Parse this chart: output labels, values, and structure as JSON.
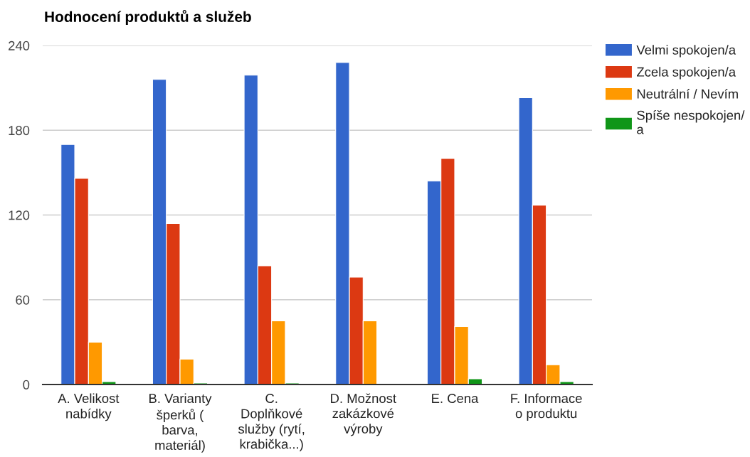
{
  "chart_data": {
    "type": "bar",
    "title": "Hodnocení produktů a služeb",
    "categories": [
      "A. Velikost nabídky",
      "B. Varianty šperků ( barva, materiál)",
      "C. Doplňkové služby (rytí, krabička...)",
      "D. Možnost zakázkové výroby",
      "E. Cena",
      "F. Informace o produktu"
    ],
    "series": [
      {
        "name": "Velmi spokojen/a",
        "color": "#3366cc",
        "values": [
          170,
          216,
          219,
          228,
          144,
          203
        ]
      },
      {
        "name": "Zcela spokojen/a",
        "color": "#dc3912",
        "values": [
          146,
          114,
          84,
          76,
          160,
          127
        ]
      },
      {
        "name": "Neutrální / Nevím",
        "color": "#ff9900",
        "values": [
          30,
          18,
          45,
          45,
          41,
          14
        ]
      },
      {
        "name": "Spíše nespokojen/a",
        "color": "#109618",
        "values": [
          2,
          1,
          1,
          null,
          4,
          2
        ]
      }
    ],
    "ylim": [
      0,
      240
    ],
    "yticks": [
      0,
      60,
      120,
      180,
      240
    ],
    "grid": "y",
    "legend": "right"
  }
}
